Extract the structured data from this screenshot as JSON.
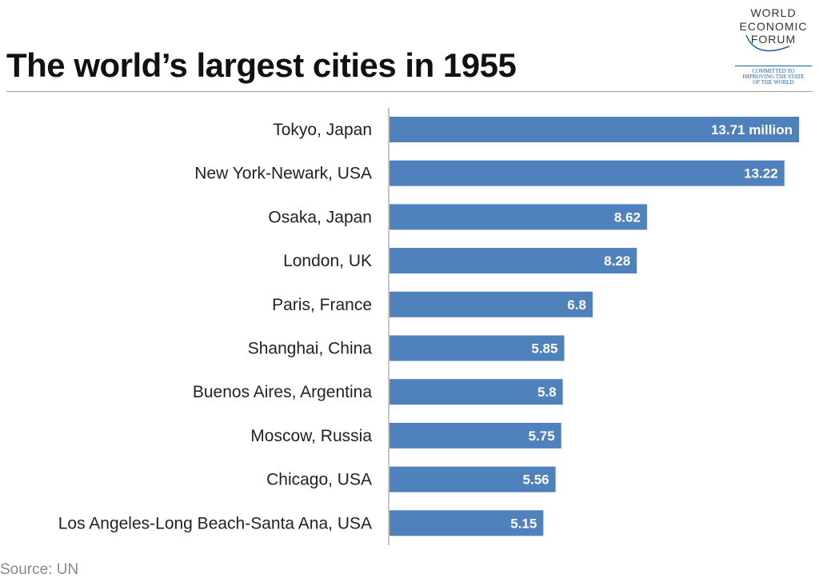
{
  "header": {
    "title": "The world’s largest cities in 1955"
  },
  "logo": {
    "line1": "WORLD",
    "line2": "ECONOMIC",
    "line3": "FORUM",
    "tagline1": "COMMITTED TO",
    "tagline2": "IMPROVING THE STATE",
    "tagline3": "OF THE WORLD"
  },
  "source": "Source: UN",
  "colors": {
    "bar": "#4f81bd",
    "axis": "#8c8c8c"
  },
  "chart_data": {
    "type": "bar",
    "orientation": "horizontal",
    "title": "The world’s largest cities in 1955",
    "xlabel": "",
    "ylabel": "",
    "xlim": [
      0,
      13.71
    ],
    "grid": false,
    "categories": [
      "Tokyo, Japan",
      "New York-Newark, USA",
      "Osaka, Japan",
      "London, UK",
      "Paris, France",
      "Shanghai, China",
      "Buenos Aires, Argentina",
      "Moscow, Russia",
      "Chicago, USA",
      "Los Angeles-Long Beach-Santa Ana, USA"
    ],
    "values": [
      13.71,
      13.22,
      8.62,
      8.28,
      6.8,
      5.85,
      5.8,
      5.75,
      5.56,
      5.15
    ],
    "data_labels": [
      "13.71 million",
      "13.22",
      "8.62",
      "8.28",
      "6.8",
      "5.85",
      "5.8",
      "5.75",
      "5.56",
      "5.15"
    ]
  }
}
